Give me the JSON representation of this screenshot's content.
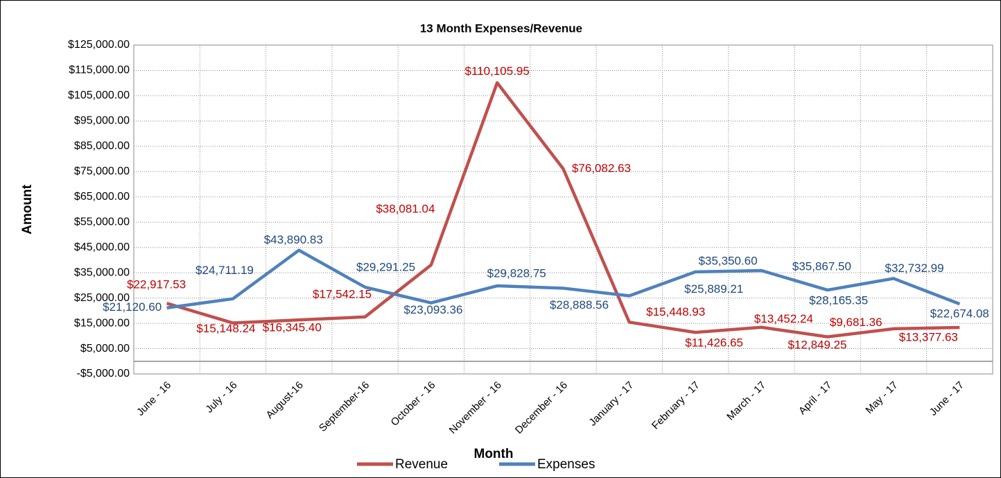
{
  "chart_data": {
    "type": "line",
    "title": "13 Month Expenses/Revenue",
    "x_label": "Month",
    "y_label": "Amount",
    "categories": [
      "June - 16",
      "July - 16",
      "August-16",
      "September-16",
      "October - 16",
      "November - 16",
      "December - 16",
      "January - 17",
      "February - 17",
      "March - 17",
      "April - 17",
      "May - 17",
      "June - 17"
    ],
    "series": [
      {
        "name": "Revenue",
        "color": "#c0504d",
        "label_color": "#c00000",
        "values": [
          22917.53,
          15148.24,
          16345.4,
          17542.15,
          38081.04,
          110105.95,
          76082.63,
          15448.93,
          11426.65,
          13452.24,
          9681.36,
          12849.25,
          13377.63
        ],
        "value_labels": [
          "$22,917.53",
          "$15,148.24",
          "$16,345.40",
          "$17,542.15",
          "$38,081.04",
          "$110,105.95",
          "$76,082.63",
          "$15,448.93",
          "$11,426.65",
          "$13,452.24",
          "$9,681.36",
          "$12,849.25",
          "$13,377.63"
        ]
      },
      {
        "name": "Expenses",
        "color": "#4f81bd",
        "label_color": "#1f497d",
        "values": [
          21120.6,
          24711.19,
          43890.83,
          29291.25,
          23093.36,
          29828.75,
          28888.56,
          25889.21,
          35350.6,
          35867.5,
          28165.35,
          32732.99,
          22674.08
        ],
        "value_labels": [
          "$21,120.60",
          "$24,711.19",
          "$43,890.83",
          "$29,291.25",
          "$23,093.36",
          "$29,828.75",
          "$28,888.56",
          "$25,889.21",
          "$35,350.60",
          "$35,867.50",
          "$28,165.35",
          "$32,732.99",
          "$22,674.08"
        ]
      }
    ],
    "ylim": [
      -5000,
      125000
    ],
    "yticks": [
      {
        "value": -5000,
        "label": "-$5,000.00"
      },
      {
        "value": 5000,
        "label": "$5,000.00"
      },
      {
        "value": 15000,
        "label": "$15,000.00"
      },
      {
        "value": 25000,
        "label": "$25,000.00"
      },
      {
        "value": 35000,
        "label": "$35,000.00"
      },
      {
        "value": 45000,
        "label": "$45,000.00"
      },
      {
        "value": 55000,
        "label": "$55,000.00"
      },
      {
        "value": 65000,
        "label": "$65,000.00"
      },
      {
        "value": 75000,
        "label": "$75,000.00"
      },
      {
        "value": 85000,
        "label": "$85,000.00"
      },
      {
        "value": 95000,
        "label": "$95,000.00"
      },
      {
        "value": 105000,
        "label": "$105,000.00"
      },
      {
        "value": 115000,
        "label": "$115,000.00"
      },
      {
        "value": 125000,
        "label": "$125,000.00"
      }
    ],
    "grid": true,
    "legend": "bottom"
  }
}
